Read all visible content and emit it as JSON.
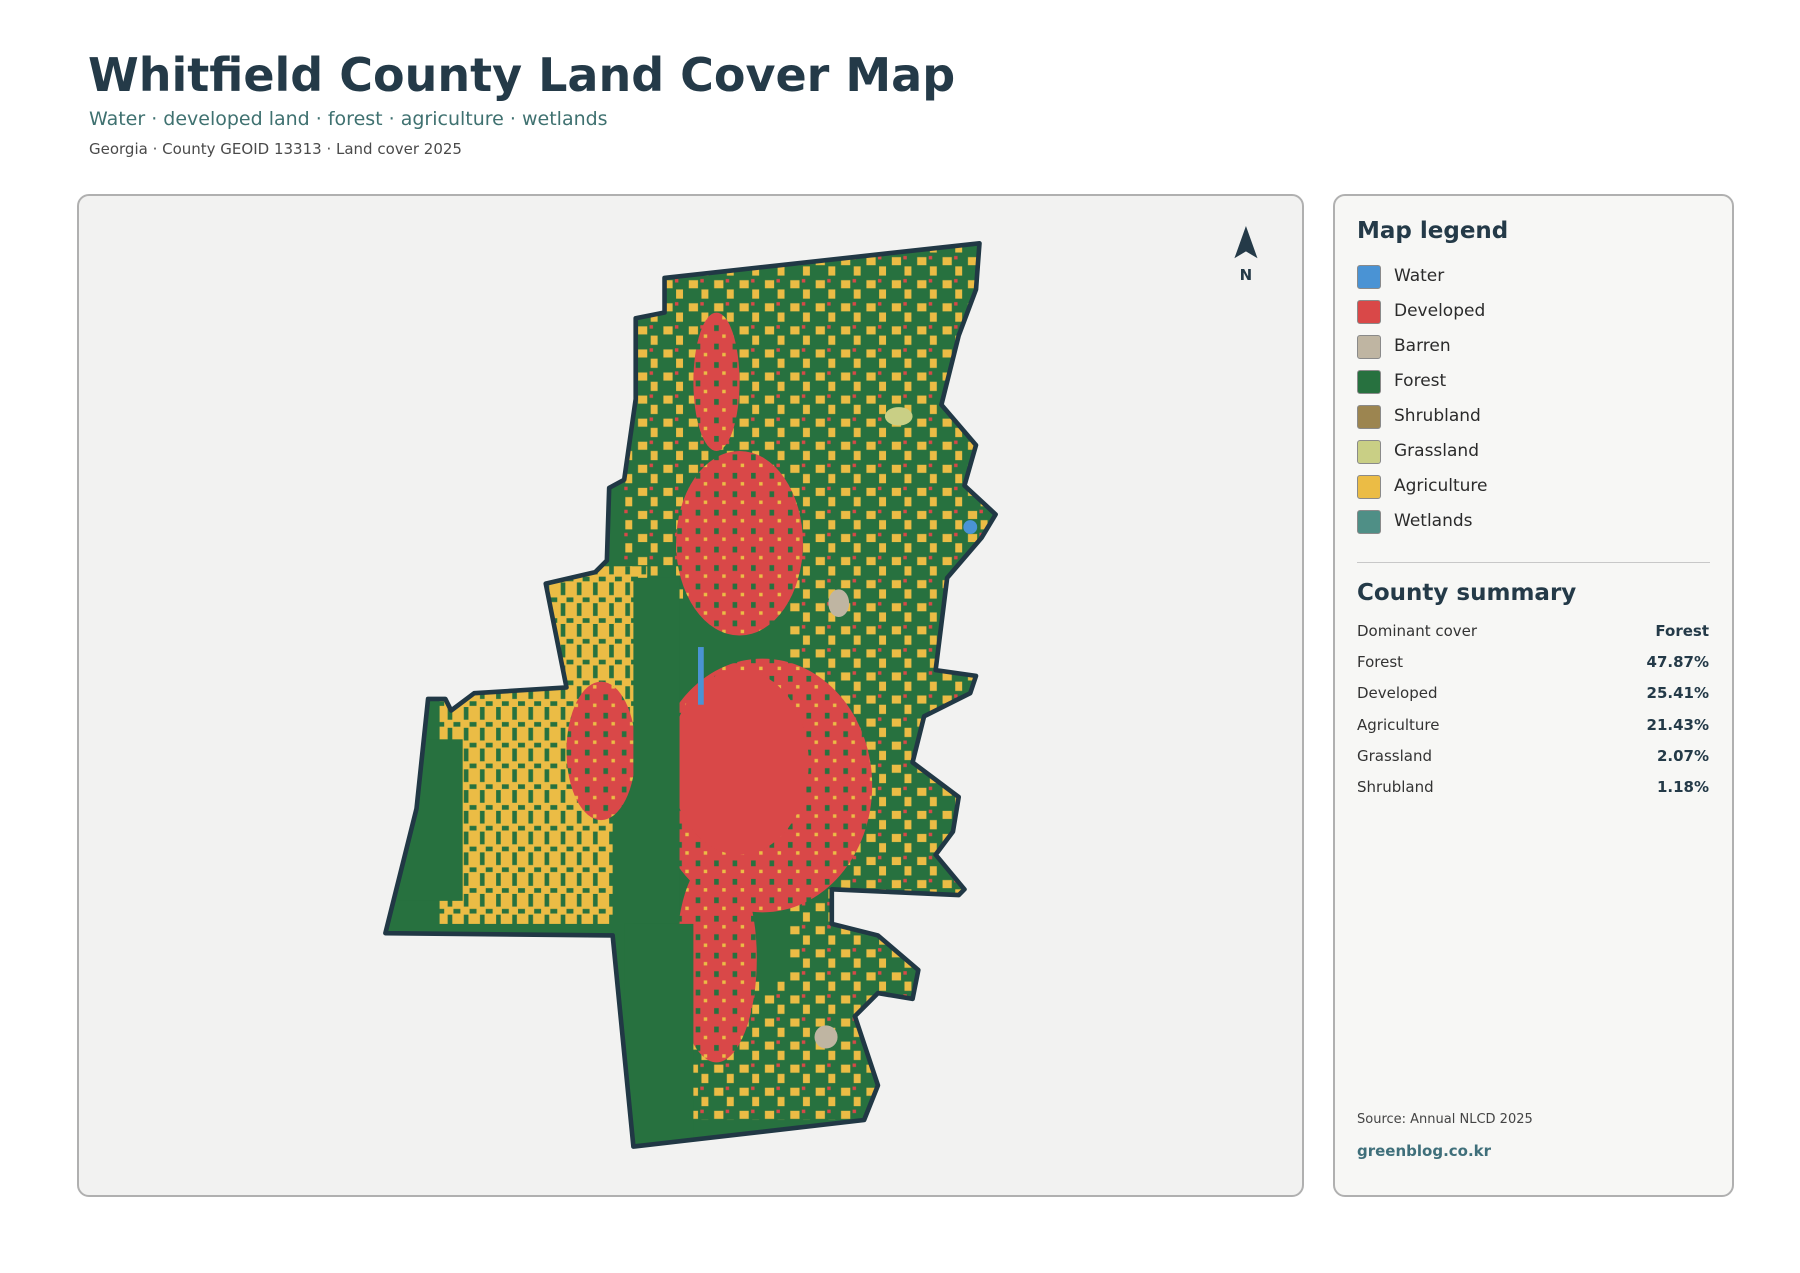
{
  "header": {
    "title": "Whitfield County Land Cover Map",
    "subtitle": "Water · developed land · forest · agriculture · wetlands",
    "meta": "Georgia · County GEOID 13313 · Land cover 2025"
  },
  "map": {
    "north_label": "N"
  },
  "legend": {
    "title": "Map legend",
    "items": [
      {
        "label": "Water",
        "color": "#4a93d4"
      },
      {
        "label": "Developed",
        "color": "#d94848"
      },
      {
        "label": "Barren",
        "color": "#bfb5a2"
      },
      {
        "label": "Forest",
        "color": "#27713f"
      },
      {
        "label": "Shrubland",
        "color": "#9c8550"
      },
      {
        "label": "Grassland",
        "color": "#c9cf85"
      },
      {
        "label": "Agriculture",
        "color": "#ebbc45"
      },
      {
        "label": "Wetlands",
        "color": "#4f8f86"
      }
    ]
  },
  "summary": {
    "title": "County summary",
    "rows": [
      [
        "Dominant cover",
        "Forest"
      ],
      [
        "Forest",
        "47.87%"
      ],
      [
        "Developed",
        "25.41%"
      ],
      [
        "Agriculture",
        "21.43%"
      ],
      [
        "Grassland",
        "2.07%"
      ],
      [
        "Shrubland",
        "1.18%"
      ]
    ]
  },
  "footer": {
    "source": "Source: Annual NLCD 2025",
    "credit": "greenblog.co.kr"
  }
}
